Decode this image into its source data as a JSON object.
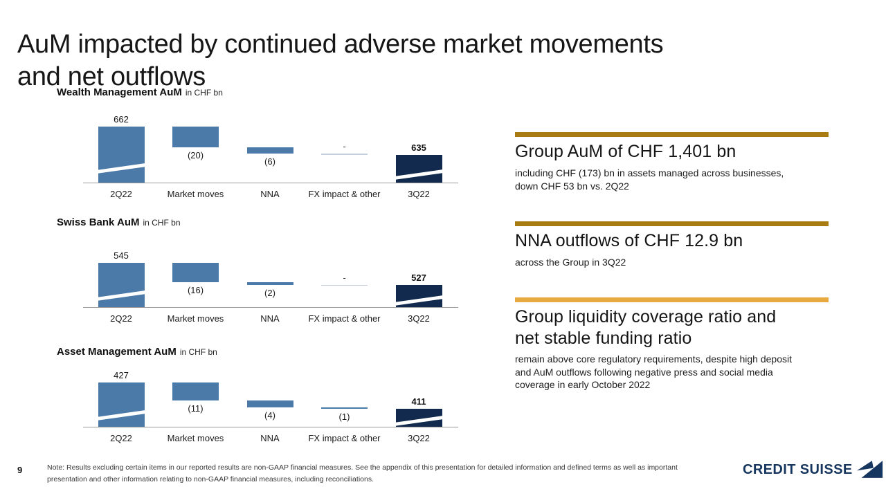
{
  "slide": {
    "title": "AuM impacted by continued adverse market movements\nand net outflows",
    "page_number": "9",
    "footnote": "Note: Results excluding certain items in our reported results are non-GAAP financial measures. See the appendix of this presentation for detailed information and defined terms as well as important\npresentation and other information relating to non-GAAP financial measures, including reconciliations.",
    "logo_text": "CREDIT SUISSE"
  },
  "colors": {
    "bar_blue": "#4b7aa9",
    "bar_dark_navy": "#112a4d",
    "zero_line_light": "#c3cfdd",
    "axis_gray": "#999999",
    "accent_gold_dark": "#a87c12",
    "accent_gold_light": "#e8a93e",
    "logo_navy": "#16365f"
  },
  "chart_data": [
    {
      "type": "bar",
      "subtype": "waterfall",
      "title": "Wealth Management AuM",
      "unit_label": "in CHF bn",
      "categories": [
        "2Q22",
        "Market moves",
        "NNA",
        "FX impact & other",
        "3Q22"
      ],
      "columns": [
        {
          "category": "2Q22",
          "role": "start",
          "value": 662,
          "label": "662"
        },
        {
          "category": "Market moves",
          "role": "delta",
          "value": -20,
          "label": "(20)"
        },
        {
          "category": "NNA",
          "role": "delta",
          "value": -6,
          "label": "(6)"
        },
        {
          "category": "FX impact & other",
          "role": "delta",
          "value": 0,
          "label": "-"
        },
        {
          "category": "3Q22",
          "role": "end",
          "value": 635,
          "label": "635"
        }
      ]
    },
    {
      "type": "bar",
      "subtype": "waterfall",
      "title": "Swiss Bank AuM",
      "unit_label": "in CHF bn",
      "categories": [
        "2Q22",
        "Market moves",
        "NNA",
        "FX impact & other",
        "3Q22"
      ],
      "columns": [
        {
          "category": "2Q22",
          "role": "start",
          "value": 545,
          "label": "545"
        },
        {
          "category": "Market moves",
          "role": "delta",
          "value": -16,
          "label": "(16)"
        },
        {
          "category": "NNA",
          "role": "delta",
          "value": -2,
          "label": "(2)"
        },
        {
          "category": "FX impact & other",
          "role": "delta",
          "value": 0,
          "label": "-"
        },
        {
          "category": "3Q22",
          "role": "end",
          "value": 527,
          "label": "527"
        }
      ]
    },
    {
      "type": "bar",
      "subtype": "waterfall",
      "title": "Asset Management AuM",
      "unit_label": "in CHF bn",
      "categories": [
        "2Q22",
        "Market moves",
        "NNA",
        "FX impact & other",
        "3Q22"
      ],
      "columns": [
        {
          "category": "2Q22",
          "role": "start",
          "value": 427,
          "label": "427"
        },
        {
          "category": "Market moves",
          "role": "delta",
          "value": -11,
          "label": "(11)"
        },
        {
          "category": "NNA",
          "role": "delta",
          "value": -4,
          "label": "(4)"
        },
        {
          "category": "FX impact & other",
          "role": "delta",
          "value": -1,
          "label": "(1)"
        },
        {
          "category": "3Q22",
          "role": "end",
          "value": 411,
          "label": "411"
        }
      ]
    }
  ],
  "highlights": [
    {
      "accent": "accent_gold_dark",
      "title": "Group AuM of CHF 1,401 bn",
      "body": "including CHF (173) bn in assets managed across businesses,\ndown CHF 53 bn vs. 2Q22"
    },
    {
      "accent": "accent_gold_dark",
      "title": "NNA outflows of CHF 12.9 bn",
      "body": "across the Group in 3Q22"
    },
    {
      "accent": "accent_gold_light",
      "title": "Group liquidity coverage ratio and\nnet stable funding ratio",
      "body": "remain above core regulatory requirements, despite high deposit\nand AuM outflows following negative press and social media\ncoverage in early October 2022"
    }
  ]
}
